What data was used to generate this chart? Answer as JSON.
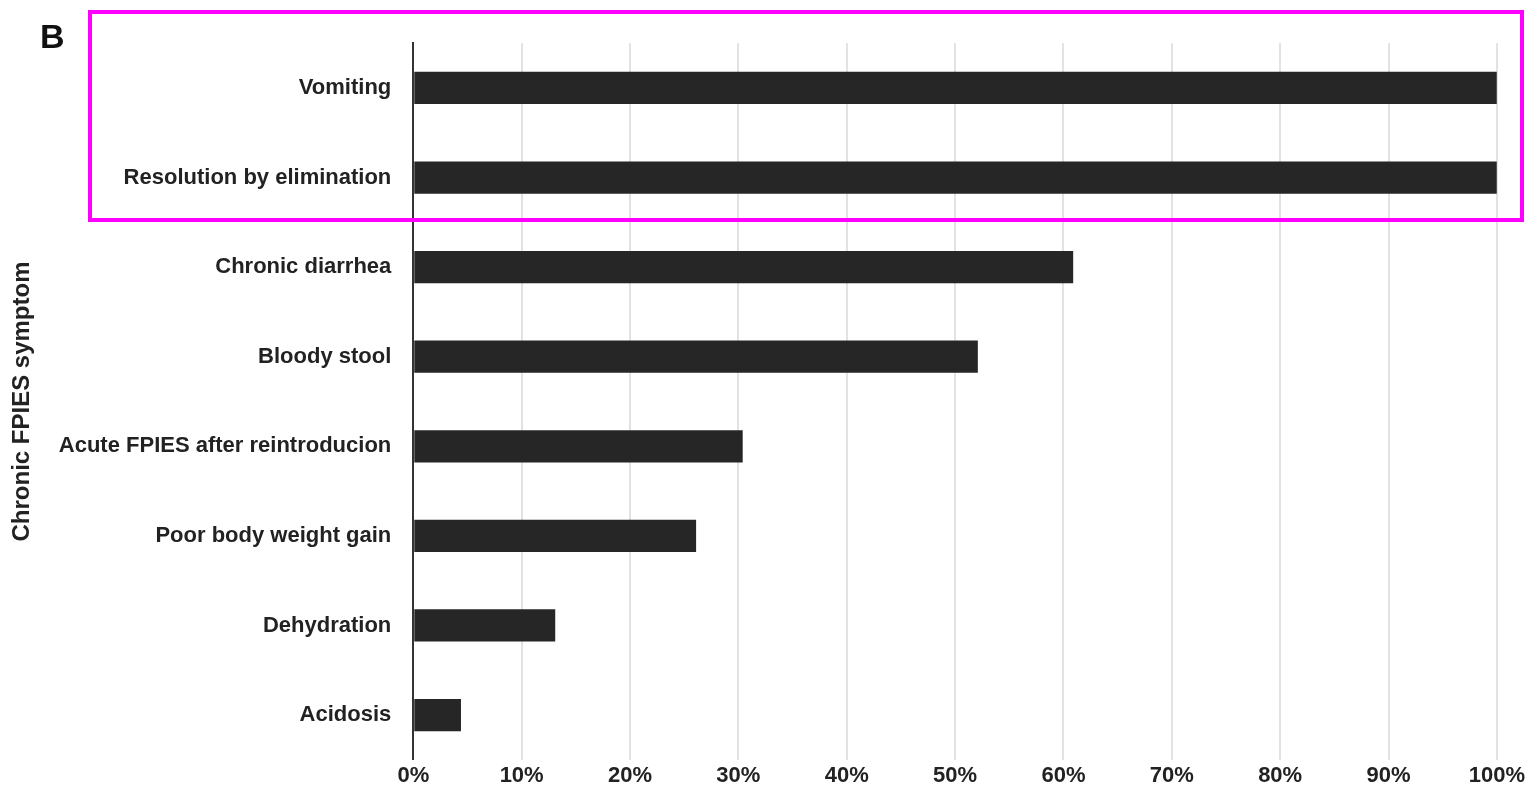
{
  "chart_data": {
    "type": "bar",
    "orientation": "horizontal",
    "ylabel": "Chronic FPIES symptom",
    "annotations": [
      "B"
    ],
    "categories": [
      "Vomiting",
      "Resolution by elimination",
      "Chronic diarrhea",
      "Bloody stool",
      "Acute FPIES after reintroducion",
      "Poor body weight gain",
      "Dehydration",
      "Acidosis"
    ],
    "values": [
      100,
      100,
      60.9,
      52.1,
      30.4,
      26.1,
      13.1,
      4.4
    ],
    "color": "#262626",
    "xlim": [
      0,
      100
    ],
    "xticks": [
      {
        "value": 0,
        "label": "0%"
      },
      {
        "value": 10,
        "label": "10%"
      },
      {
        "value": 20,
        "label": "20%"
      },
      {
        "value": 30,
        "label": "30%"
      },
      {
        "value": 40,
        "label": "40%"
      },
      {
        "value": 50,
        "label": "50%"
      },
      {
        "value": 60,
        "label": "60%"
      },
      {
        "value": 70,
        "label": "70%"
      },
      {
        "value": 80,
        "label": "80%"
      },
      {
        "value": 90,
        "label": "90%"
      },
      {
        "value": 100,
        "label": "100%"
      }
    ],
    "grid": "x"
  }
}
